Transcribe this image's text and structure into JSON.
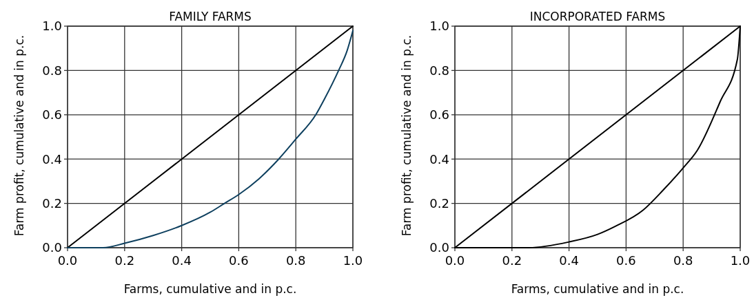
{
  "chart_data": [
    {
      "type": "line",
      "title": "FAMILY FARMS",
      "xlabel": "Farms, cumulative and in p.c.",
      "ylabel": "Farm profit, cumulative and in p.c.",
      "xlim": [
        0,
        1
      ],
      "ylim": [
        0,
        1
      ],
      "xticks": [
        {
          "value": 0,
          "label": "0.0"
        },
        {
          "value": 0.2,
          "label": "0.2"
        },
        {
          "value": 0.4,
          "label": "0.4"
        },
        {
          "value": 0.6,
          "label": "0.6"
        },
        {
          "value": 0.8,
          "label": "0.8"
        },
        {
          "value": 1,
          "label": "1.0"
        }
      ],
      "yticks": [
        {
          "value": 0,
          "label": "0.0"
        },
        {
          "value": 0.2,
          "label": "0.2"
        },
        {
          "value": 0.4,
          "label": "0.4"
        },
        {
          "value": 0.6,
          "label": "0.6"
        },
        {
          "value": 0.8,
          "label": "0.8"
        },
        {
          "value": 1,
          "label": "1.0"
        }
      ],
      "grid": true,
      "series": [
        {
          "color": "#000000",
          "x": [
            0,
            1
          ],
          "values": [
            0,
            1
          ]
        },
        {
          "color": "#0d3f5e",
          "x": [
            0,
            0.125,
            0.2,
            0.3,
            0.4,
            0.5,
            0.55,
            0.6,
            0.67,
            0.74,
            0.8,
            0.87,
            0.9,
            0.95,
            0.98,
            1
          ],
          "values": [
            0,
            0,
            0.02,
            0.055,
            0.1,
            0.16,
            0.2,
            0.24,
            0.31,
            0.4,
            0.49,
            0.6,
            0.67,
            0.8,
            0.89,
            0.98
          ]
        }
      ]
    },
    {
      "type": "line",
      "title": "INCORPORATED FARMS",
      "xlabel": "Farms, cumulative and in p.c.",
      "ylabel": "Farm profit, cumulative and in p.c.",
      "xlim": [
        0,
        1
      ],
      "ylim": [
        0,
        1
      ],
      "xticks": [
        {
          "value": 0,
          "label": "0.0"
        },
        {
          "value": 0.2,
          "label": "0.2"
        },
        {
          "value": 0.4,
          "label": "0.4"
        },
        {
          "value": 0.6,
          "label": "0.6"
        },
        {
          "value": 0.8,
          "label": "0.8"
        },
        {
          "value": 1,
          "label": "1.0"
        }
      ],
      "yticks": [
        {
          "value": 0,
          "label": "0.0"
        },
        {
          "value": 0.2,
          "label": "0.2"
        },
        {
          "value": 0.4,
          "label": "0.4"
        },
        {
          "value": 0.6,
          "label": "0.6"
        },
        {
          "value": 0.8,
          "label": "0.8"
        },
        {
          "value": 1,
          "label": "1.0"
        }
      ],
      "grid": true,
      "series": [
        {
          "color": "#000000",
          "x": [
            0,
            1
          ],
          "values": [
            0,
            1
          ]
        },
        {
          "color": "#000000",
          "x": [
            0,
            0.26,
            0.4,
            0.5,
            0.56,
            0.66,
            0.73,
            0.8,
            0.85,
            0.93,
            0.99,
            1
          ],
          "values": [
            0,
            0,
            0.026,
            0.06,
            0.095,
            0.17,
            0.26,
            0.36,
            0.44,
            0.66,
            0.85,
            1
          ]
        }
      ]
    }
  ]
}
